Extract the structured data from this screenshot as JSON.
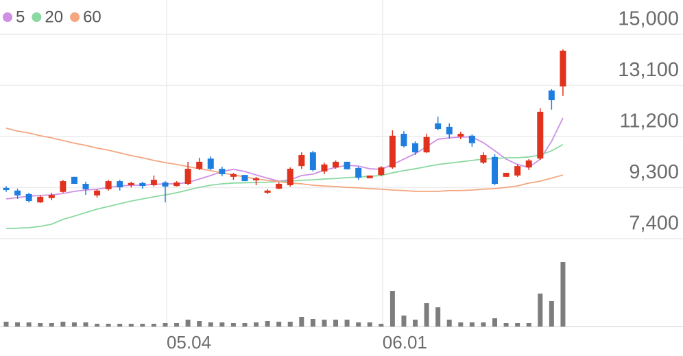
{
  "chart_data": {
    "type": "candlestick",
    "categories": [
      null,
      null,
      null,
      null,
      null,
      null,
      null,
      null,
      null,
      null,
      null,
      null,
      null,
      null,
      "05.04",
      null,
      null,
      null,
      null,
      null,
      null,
      null,
      null,
      null,
      null,
      null,
      null,
      null,
      null,
      null,
      null,
      null,
      null,
      "06.01",
      null,
      null,
      null,
      null,
      null,
      null,
      null,
      null,
      null,
      null,
      null,
      null,
      null,
      null,
      null,
      null
    ],
    "open": [
      9290,
      9190,
      9060,
      8750,
      8910,
      9140,
      9700,
      9440,
      9010,
      9240,
      9540,
      9390,
      9470,
      9390,
      9490,
      9360,
      9440,
      10000,
      10380,
      10000,
      9700,
      9770,
      9570,
      9110,
      9260,
      9390,
      10100,
      10610,
      9900,
      10050,
      10260,
      10030,
      9650,
      9770,
      10050,
      11300,
      10950,
      10610,
      11690,
      11560,
      11200,
      11230,
      10230,
      10440,
      9700,
      9750,
      10050,
      10380,
      12910,
      13060
    ],
    "high": [
      9360,
      9260,
      9110,
      9010,
      9110,
      9590,
      9700,
      9520,
      9240,
      9590,
      9590,
      9520,
      9520,
      9750,
      9540,
      9540,
      10260,
      10410,
      10460,
      10080,
      9850,
      9770,
      9700,
      9240,
      9490,
      10050,
      10610,
      10670,
      10230,
      10310,
      10260,
      10080,
      9750,
      10100,
      11430,
      11400,
      11020,
      11300,
      11940,
      11690,
      11380,
      11280,
      10610,
      10540,
      9850,
      10160,
      10360,
      12250,
      12960,
      14440
    ],
    "low": [
      9140,
      8880,
      8750,
      8730,
      8830,
      9110,
      9440,
      9030,
      8930,
      9190,
      9190,
      9310,
      9260,
      9340,
      8750,
      9340,
      9390,
      9950,
      9950,
      9720,
      9590,
      9540,
      9390,
      9060,
      9240,
      9340,
      10000,
      9900,
      9800,
      10000,
      9980,
      9590,
      9650,
      9720,
      10000,
      10790,
      10510,
      10590,
      11430,
      11120,
      11100,
      10820,
      10180,
      9390,
      9700,
      9700,
      9950,
      10330,
      12200,
      12710
    ],
    "close": [
      9210,
      9010,
      8800,
      8960,
      9030,
      9540,
      9440,
      9240,
      9190,
      9540,
      9310,
      9470,
      9360,
      9590,
      9340,
      9490,
      10000,
      10260,
      10000,
      9800,
      9800,
      9540,
      9650,
      9190,
      9440,
      10000,
      10510,
      9950,
      10160,
      10260,
      9980,
      9670,
      9750,
      10050,
      11230,
      10840,
      10610,
      11180,
      11480,
      11280,
      11300,
      10950,
      10510,
      9440,
      9850,
      10100,
      10310,
      12120,
      12550,
      14390
    ],
    "up_color": "#e0321c",
    "down_color": "#1e7ee0",
    "volume": [
      7,
      6,
      6,
      5,
      5,
      7,
      6,
      6,
      4,
      4,
      4,
      4,
      4,
      4,
      5,
      5,
      10,
      8,
      6,
      6,
      5,
      5,
      6,
      8,
      7,
      7,
      14,
      11,
      10,
      10,
      10,
      6,
      6,
      4,
      52,
      16,
      10,
      34,
      28,
      10,
      6,
      6,
      6,
      12,
      5,
      5,
      5,
      48,
      37,
      94
    ],
    "volume_color": "#7d7d7d",
    "series": [
      {
        "name": "5",
        "color": "#cf8fe3",
        "values": [
          8880,
          8930,
          8980,
          9010,
          9030,
          9080,
          9160,
          9210,
          9240,
          9310,
          9360,
          9390,
          9390,
          9420,
          9440,
          9440,
          9490,
          9620,
          9750,
          9900,
          9980,
          9900,
          9770,
          9650,
          9540,
          9590,
          9750,
          9800,
          9950,
          10050,
          10130,
          10100,
          10000,
          9980,
          10160,
          10360,
          10560,
          10820,
          11100,
          11150,
          11180,
          11180,
          10970,
          10670,
          10360,
          10160,
          10050,
          10360,
          11020,
          11890
        ]
      },
      {
        "name": "20",
        "color": "#8ad9a2",
        "values": [
          7780,
          7790,
          7810,
          7860,
          7940,
          8120,
          8240,
          8370,
          8500,
          8600,
          8700,
          8800,
          8880,
          8960,
          9030,
          9110,
          9210,
          9310,
          9390,
          9440,
          9470,
          9480,
          9490,
          9500,
          9520,
          9540,
          9570,
          9590,
          9620,
          9640,
          9670,
          9690,
          9720,
          9750,
          9850,
          9930,
          10000,
          10080,
          10160,
          10210,
          10260,
          10310,
          10360,
          10380,
          10410,
          10410,
          10440,
          10510,
          10670,
          10900
        ]
      },
      {
        "name": "60",
        "color": "#f4a67f",
        "values": [
          11510,
          11400,
          11330,
          11230,
          11150,
          11050,
          10950,
          10870,
          10770,
          10690,
          10590,
          10490,
          10410,
          10310,
          10230,
          10160,
          10080,
          10000,
          9930,
          9850,
          9770,
          9700,
          9620,
          9570,
          9520,
          9470,
          9440,
          9390,
          9360,
          9340,
          9310,
          9290,
          9260,
          9240,
          9210,
          9190,
          9160,
          9160,
          9160,
          9190,
          9190,
          9210,
          9240,
          9260,
          9310,
          9360,
          9470,
          9540,
          9650,
          9770
        ]
      }
    ],
    "ylim": [
      7400,
      15000
    ],
    "yticks": [
      {
        "value": 15000,
        "label": "15,000"
      },
      {
        "value": 13100,
        "label": "13,100"
      },
      {
        "value": 11200,
        "label": "11,200"
      },
      {
        "value": 9300,
        "label": "9,300"
      },
      {
        "value": 7400,
        "label": "7,400"
      }
    ],
    "grid": true
  }
}
